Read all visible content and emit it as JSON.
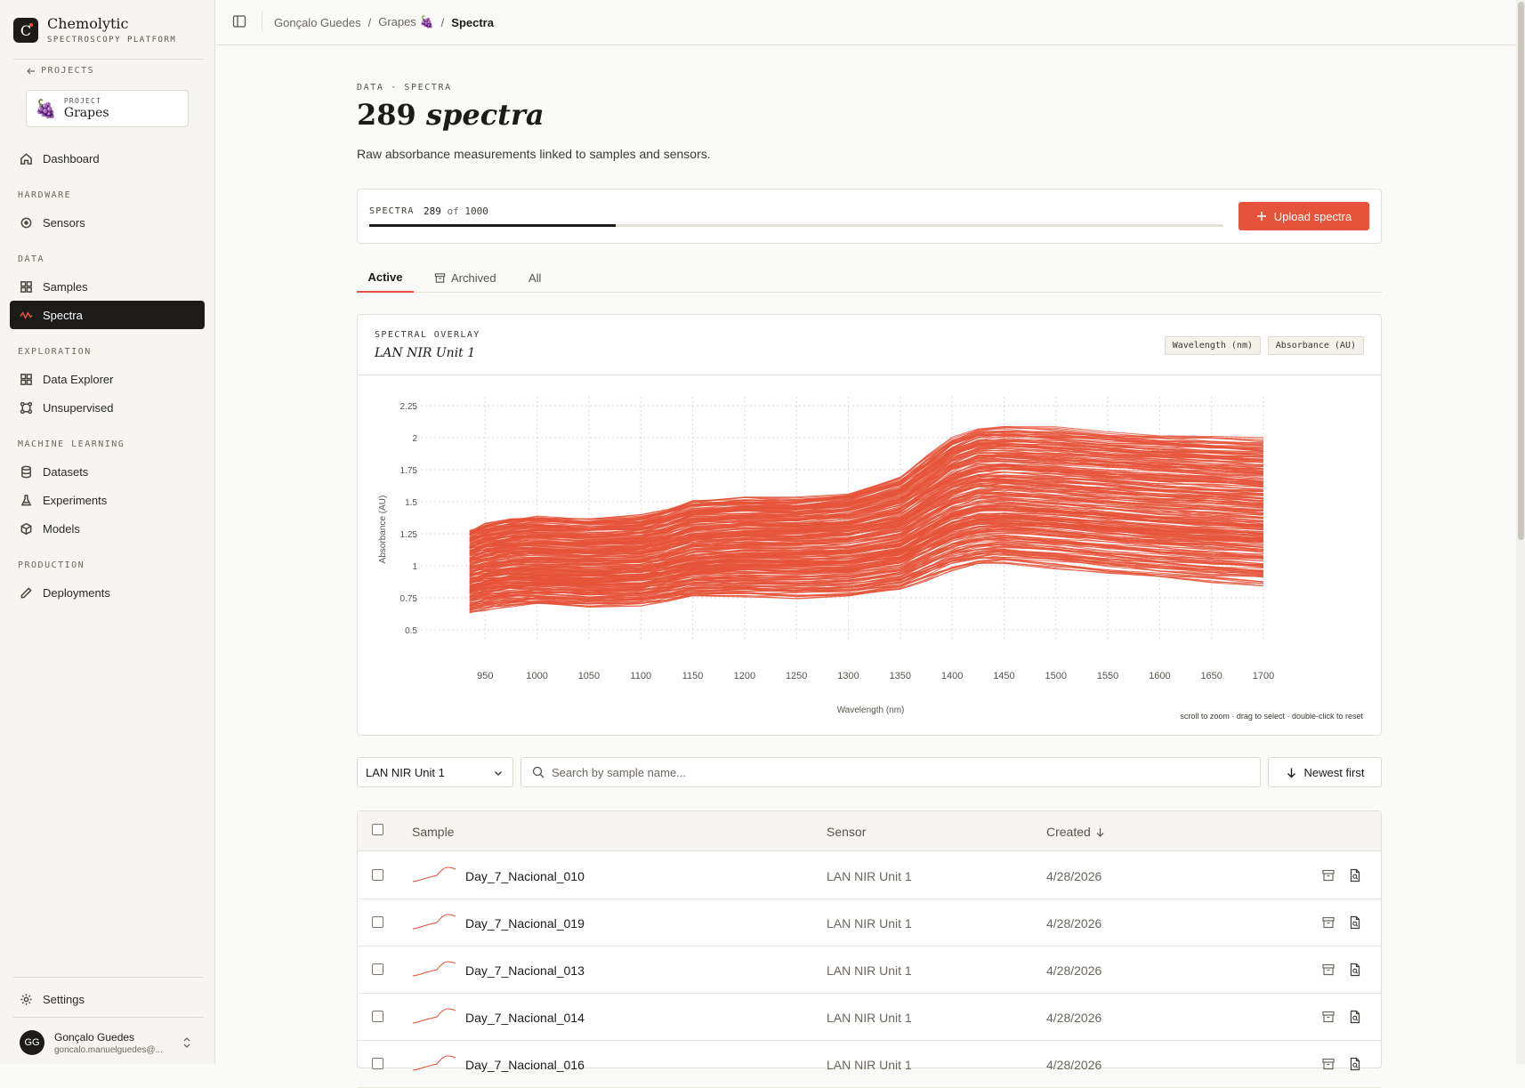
{
  "brand": {
    "name": "Chemolytic",
    "tagline": "SPECTROSCOPY PLATFORM",
    "mark": "C"
  },
  "sidebar": {
    "back_label": "PROJECTS",
    "project": {
      "label": "PROJECT",
      "name": "Grapes",
      "emoji": "🍇"
    },
    "sections": {
      "hardware": "HARDWARE",
      "data": "DATA",
      "exploration": "EXPLORATION",
      "ml": "MACHINE LEARNING",
      "production": "PRODUCTION"
    },
    "items": {
      "dashboard": "Dashboard",
      "sensors": "Sensors",
      "samples": "Samples",
      "spectra": "Spectra",
      "data_explorer": "Data Explorer",
      "unsupervised": "Unsupervised",
      "datasets": "Datasets",
      "experiments": "Experiments",
      "models": "Models",
      "deployments": "Deployments",
      "settings": "Settings"
    },
    "active": "Spectra",
    "user": {
      "initials": "GG",
      "name": "Gonçalo Guedes",
      "email": "goncalo.manuelguedes@..."
    }
  },
  "breadcrumb": {
    "owner": "Gonçalo Guedes",
    "project": "Grapes",
    "project_emoji": "🍇",
    "current": "Spectra",
    "sep": "/"
  },
  "page": {
    "eyebrow": "DATA · SPECTRA",
    "title_count": "289",
    "title_word": "spectra",
    "subtitle": "Raw absorbance measurements linked to samples and sensors."
  },
  "quota": {
    "label": "SPECTRA",
    "used": "289",
    "of_word": "of",
    "limit": "1000",
    "fraction": 0.289,
    "upload_label": "Upload spectra"
  },
  "tabs": [
    {
      "label": "Active",
      "active": true
    },
    {
      "label": "Archived",
      "active": false
    },
    {
      "label": "All",
      "active": false
    }
  ],
  "overlay": {
    "eyebrow": "SPECTRAL OVERLAY",
    "sensor": "LAN NIR Unit 1",
    "chip_x": "Wavelength (nm)",
    "chip_y": "Absorbance (AU)",
    "hint": "scroll to zoom · drag to select · double-click to reset"
  },
  "chart_data": {
    "type": "line",
    "xlabel": "Wavelength (nm)",
    "ylabel": "Absorbance (AU)",
    "xlim": [
      900,
      1700
    ],
    "ylim": [
      0.5,
      2.25
    ],
    "x_ticks": [
      950,
      1000,
      1050,
      1100,
      1150,
      1200,
      1250,
      1300,
      1350,
      1400,
      1450,
      1500,
      1550,
      1600,
      1650,
      1700
    ],
    "y_ticks": [
      0.5,
      0.75,
      1,
      1.25,
      1.5,
      1.75,
      2,
      2.25
    ],
    "x_tick_labels": [
      "950",
      "1000",
      "1050",
      "1100",
      "1150",
      "1200",
      "1250",
      "1300",
      "1350",
      "1400",
      "1450",
      "1500",
      "1550",
      "1600",
      "1650",
      "1700"
    ],
    "y_tick_labels": [
      "0.5",
      "0.75",
      "1",
      "1.25",
      "1.5",
      "1.75",
      "2",
      "2.25"
    ],
    "grid": true,
    "color": "#e5533a",
    "series_count": 289,
    "x": [
      935,
      950,
      975,
      1000,
      1050,
      1100,
      1125,
      1150,
      1200,
      1250,
      1300,
      1350,
      1375,
      1400,
      1425,
      1450,
      1500,
      1550,
      1600,
      1650,
      1700
    ],
    "envelope": {
      "upper": [
        1.28,
        1.33,
        1.37,
        1.39,
        1.37,
        1.39,
        1.44,
        1.51,
        1.53,
        1.52,
        1.56,
        1.69,
        1.84,
        1.99,
        2.07,
        2.08,
        2.06,
        2.03,
        2.01,
        1.99,
        1.97
      ],
      "median": [
        0.97,
        1.0,
        1.03,
        1.04,
        1.03,
        1.04,
        1.08,
        1.14,
        1.17,
        1.17,
        1.19,
        1.26,
        1.38,
        1.49,
        1.55,
        1.56,
        1.53,
        1.5,
        1.47,
        1.45,
        1.42
      ],
      "lower": [
        0.63,
        0.66,
        0.69,
        0.7,
        0.68,
        0.7,
        0.73,
        0.76,
        0.77,
        0.76,
        0.77,
        0.82,
        0.9,
        0.98,
        1.02,
        1.03,
        1.0,
        0.96,
        0.92,
        0.89,
        0.87
      ]
    }
  },
  "filters": {
    "sensor_value": "LAN NIR Unit 1",
    "search_placeholder": "Search by sample name...",
    "sort_label": "Newest first"
  },
  "table": {
    "columns": {
      "sample": "Sample",
      "sensor": "Sensor",
      "created": "Created"
    },
    "rows": [
      {
        "sample": "Day_7_Nacional_010",
        "sensor": "LAN NIR Unit 1",
        "created": "4/28/2026"
      },
      {
        "sample": "Day_7_Nacional_019",
        "sensor": "LAN NIR Unit 1",
        "created": "4/28/2026"
      },
      {
        "sample": "Day_7_Nacional_013",
        "sensor": "LAN NIR Unit 1",
        "created": "4/28/2026"
      },
      {
        "sample": "Day_7_Nacional_014",
        "sensor": "LAN NIR Unit 1",
        "created": "4/28/2026"
      },
      {
        "sample": "Day_7_Nacional_016",
        "sensor": "LAN NIR Unit 1",
        "created": "4/28/2026"
      }
    ]
  },
  "icons": {
    "brand": "logo-mark",
    "back": "arrow-left-icon",
    "dashboard": "home-icon",
    "sensors": "target-icon",
    "samples": "grid-icon",
    "spectra": "waveform-icon",
    "data_explorer": "grid-icon",
    "unsupervised": "nodes-icon",
    "datasets": "database-icon",
    "experiments": "flask-icon",
    "models": "cube-icon",
    "deployments": "pencil-icon",
    "settings": "gear-icon",
    "upload": "plus-icon",
    "archive": "archive-icon",
    "search": "search-icon",
    "sort": "arrow-down-icon",
    "document": "document-icon"
  }
}
